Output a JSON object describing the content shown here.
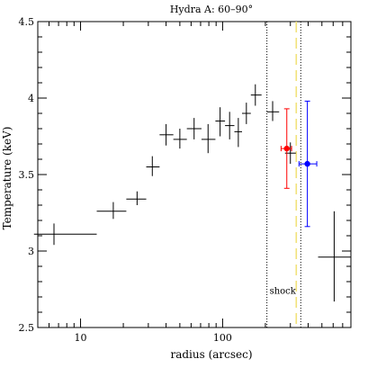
{
  "chart_data": {
    "type": "scatter",
    "title": "Hydra A:  60–90°",
    "xlabel": "radius (arcsec)",
    "ylabel": "Temperature (keV)",
    "x_scale": "log",
    "xlim": [
      5,
      800
    ],
    "ylim": [
      2.5,
      4.5
    ],
    "x_tick_labels": [
      "10",
      "100"
    ],
    "y_tick_labels": [
      "2.5",
      "3",
      "3.5",
      "4",
      "4.5"
    ],
    "grid": false,
    "series": [
      {
        "color": "#000000",
        "points": [
          {
            "x": 6.5,
            "xlo": 4.7,
            "xhi": 13,
            "y": 3.11,
            "ylo": 3.04,
            "yhi": 3.18
          },
          {
            "x": 17,
            "xlo": 13,
            "xhi": 21,
            "y": 3.26,
            "ylo": 3.21,
            "yhi": 3.32
          },
          {
            "x": 25,
            "xlo": 21,
            "xhi": 29,
            "y": 3.34,
            "ylo": 3.3,
            "yhi": 3.39
          },
          {
            "x": 32,
            "xlo": 29,
            "xhi": 36,
            "y": 3.55,
            "ylo": 3.49,
            "yhi": 3.62
          },
          {
            "x": 40,
            "xlo": 36,
            "xhi": 45,
            "y": 3.76,
            "ylo": 3.69,
            "yhi": 3.83
          },
          {
            "x": 50,
            "xlo": 45,
            "xhi": 56,
            "y": 3.73,
            "ylo": 3.67,
            "yhi": 3.8
          },
          {
            "x": 63,
            "xlo": 56,
            "xhi": 71,
            "y": 3.8,
            "ylo": 3.73,
            "yhi": 3.87
          },
          {
            "x": 79,
            "xlo": 71,
            "xhi": 89,
            "y": 3.73,
            "ylo": 3.64,
            "yhi": 3.83
          },
          {
            "x": 96,
            "xlo": 89,
            "xhi": 104,
            "y": 3.85,
            "ylo": 3.75,
            "yhi": 3.94
          },
          {
            "x": 112,
            "xlo": 104,
            "xhi": 121,
            "y": 3.82,
            "ylo": 3.73,
            "yhi": 3.91
          },
          {
            "x": 129,
            "xlo": 121,
            "xhi": 137,
            "y": 3.78,
            "ylo": 3.68,
            "yhi": 3.87
          },
          {
            "x": 147,
            "xlo": 137,
            "xhi": 158,
            "y": 3.9,
            "ylo": 3.83,
            "yhi": 3.97
          },
          {
            "x": 170,
            "xlo": 158,
            "xhi": 188,
            "y": 4.02,
            "ylo": 3.95,
            "yhi": 4.09
          },
          {
            "x": 225,
            "xlo": 205,
            "xhi": 250,
            "y": 3.91,
            "ylo": 3.85,
            "yhi": 3.98
          },
          {
            "x": 300,
            "xlo": 275,
            "xhi": 328,
            "y": 3.64,
            "ylo": 3.57,
            "yhi": 3.71
          },
          {
            "x": 610,
            "xlo": 470,
            "xhi": 800,
            "y": 2.96,
            "ylo": 2.67,
            "yhi": 3.26
          }
        ]
      },
      {
        "color": "#ff0000",
        "points": [
          {
            "x": 283,
            "xlo": 258,
            "xhi": 306,
            "y": 3.67,
            "ylo": 3.41,
            "yhi": 3.93
          }
        ]
      },
      {
        "color": "#0000ff",
        "points": [
          {
            "x": 395,
            "xlo": 345,
            "xhi": 460,
            "y": 3.57,
            "ylo": 3.16,
            "yhi": 3.98
          }
        ]
      }
    ],
    "vertical_lines": [
      {
        "x": 205,
        "style": "dotted",
        "color": "#000000"
      },
      {
        "x": 355,
        "style": "dotted",
        "color": "#000000"
      },
      {
        "x": 330,
        "style": "dashed",
        "color": "#f2e27a"
      }
    ],
    "annotations": [
      {
        "text": "shock",
        "x": 265,
        "y": 2.72
      }
    ]
  }
}
